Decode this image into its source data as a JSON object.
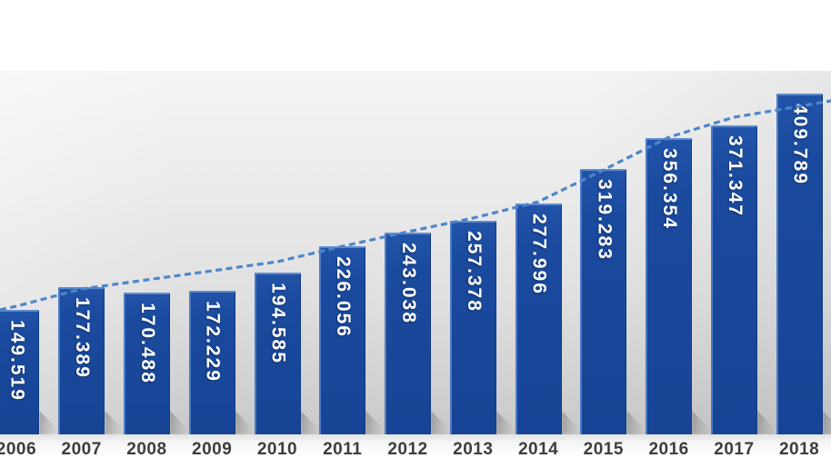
{
  "chart_data": {
    "type": "bar",
    "categories": [
      "2006",
      "2007",
      "2008",
      "2009",
      "2010",
      "2011",
      "2012",
      "2013",
      "2014",
      "2015",
      "2016",
      "2017",
      "2018"
    ],
    "series": [
      {
        "name": "annual-value-bars",
        "values": [
          149519,
          177389,
          170488,
          172229,
          194585,
          226056,
          243038,
          257378,
          277996,
          319283,
          356354,
          371347,
          409789
        ]
      },
      {
        "name": "trend-line",
        "values": [
          154100,
          174900,
          185800,
          196700,
          207700,
          226200,
          243700,
          260100,
          279800,
          318000,
          357400,
          381400,
          394500
        ],
        "edge_left": 149700,
        "edge_right": 401100
      }
    ],
    "value_labels": [
      "149.519",
      "177.389",
      "170.488",
      "172.229",
      "194.585",
      "226.056",
      "243.038",
      "257.378",
      "277.996",
      "319.283",
      "356.354",
      "371.347",
      "409.789"
    ],
    "ylim": [
      0,
      437000
    ],
    "grid": false,
    "legend": false,
    "colors": {
      "bar": "#1a4a9e",
      "bar_highlight": "#5c89d0",
      "bar_edge_dark": "#133c82",
      "trend": "#4e86c9",
      "value_label": "#ffffff",
      "category_label": "#3d3d3d",
      "plot_top": "#f4f4f4",
      "plot_bottom": "#c9c9c9"
    }
  }
}
